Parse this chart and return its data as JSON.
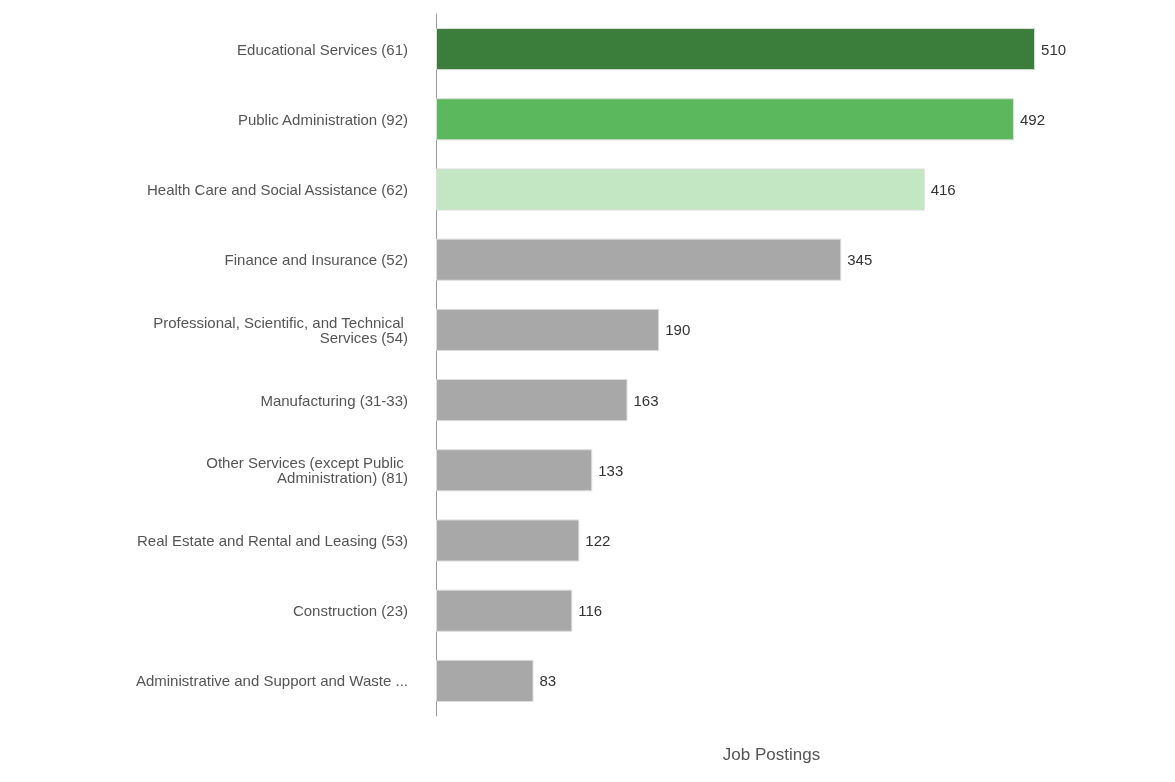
{
  "chart_data": {
    "type": "bar",
    "orientation": "horizontal",
    "xlabel": "Job Postings",
    "categories": [
      "Educational Services (61)",
      "Public Administration (92)",
      "Health Care and Social Assistance (62)",
      "Finance and Insurance (52)",
      "Professional, Scientific, and Technical Services (54)",
      "Manufacturing (31-33)",
      "Other Services (except Public Administration) (81)",
      "Real Estate and Rental and Leasing (53)",
      "Construction (23)",
      "Administrative and Support and Waste ..."
    ],
    "values": [
      510,
      492,
      416,
      345,
      190,
      163,
      133,
      122,
      116,
      83
    ],
    "colors": [
      "#3b7d3b",
      "#5cb85c",
      "#c3e6c3",
      "#a8a8a8",
      "#a8a8a8",
      "#a8a8a8",
      "#a8a8a8",
      "#a8a8a8",
      "#a8a8a8",
      "#a8a8a8"
    ],
    "data_labels": true
  }
}
